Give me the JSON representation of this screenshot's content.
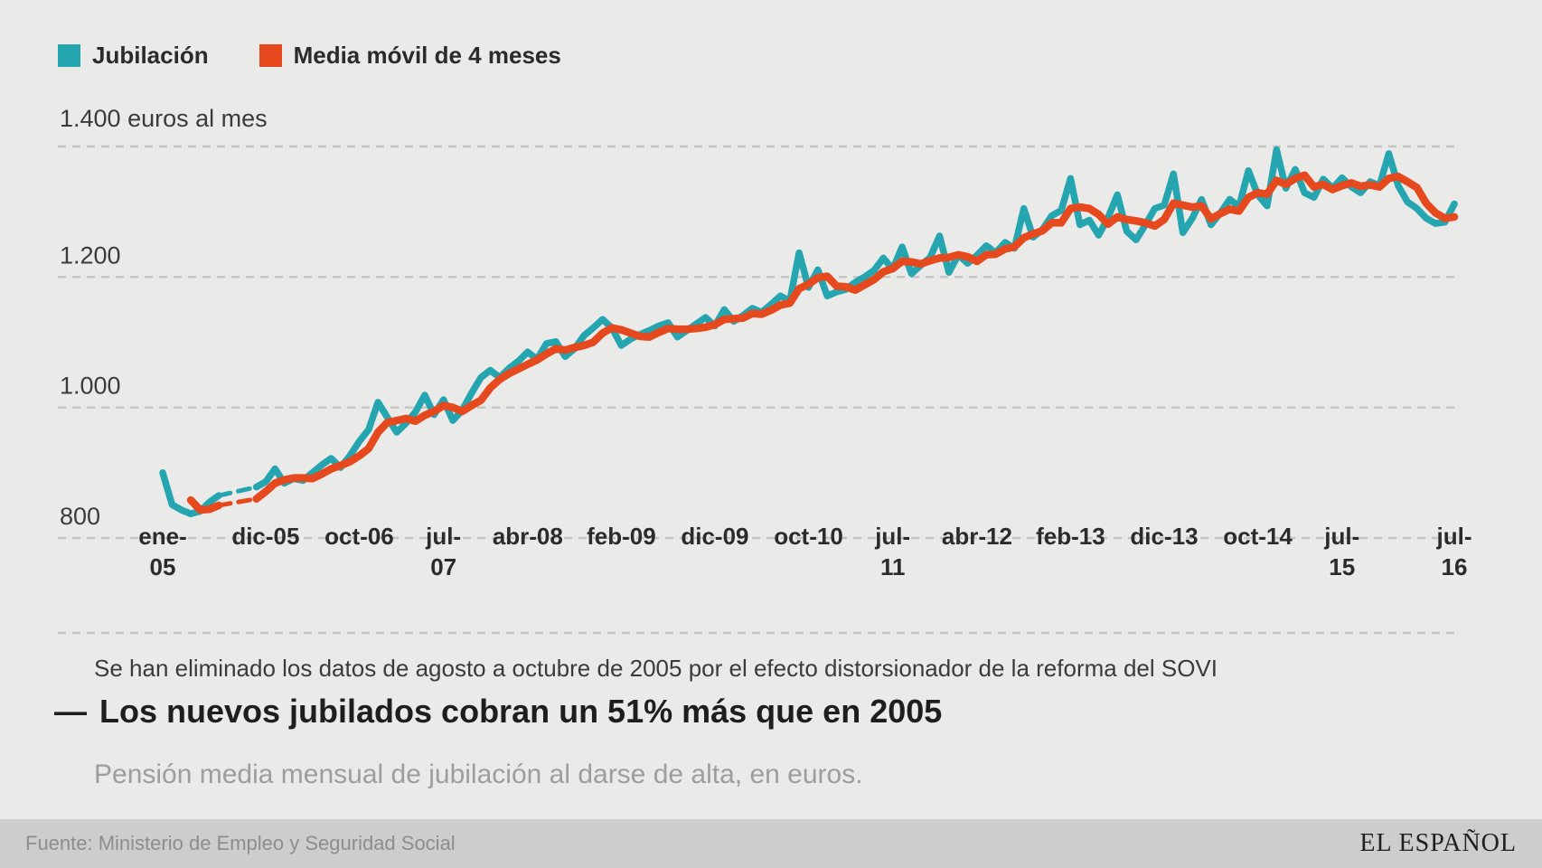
{
  "colors": {
    "background": "#eaeae8",
    "series_jubilacion": "#25a5b0",
    "series_media_movil": "#e5491d",
    "grid": "#c4c4c2",
    "axis_text": "#3b3b39",
    "month_text": "#2b2b29",
    "title_text": "#1e1e1c",
    "subtitle_text": "#9d9d9b",
    "footer_bg": "#cdcdcb",
    "footer_text": "#8d8d8b",
    "brand_text": "#1f1f1d"
  },
  "legend": {
    "items": [
      {
        "label": "Jubilación",
        "color": "#25a5b0"
      },
      {
        "label": "Media móvil de 4 meses",
        "color": "#e5491d"
      }
    ]
  },
  "note": "Se han eliminado los datos de agosto a octubre de 2005 por el efecto distorsionador de la reforma del SOVI",
  "headline": {
    "dash": "—",
    "title": "Los nuevos jubilados cobran un 51% más que en 2005"
  },
  "subtitle": "Pensión media mensual de jubilación al darse de alta, en euros.",
  "footer": {
    "source": "Fuente: Ministerio de Empleo y Seguridad Social",
    "brand": "EL ESPAÑOL"
  },
  "chart_data": {
    "type": "line",
    "title": "Los nuevos jubilados cobran un 51% más que en 2005",
    "subtitle": "Pensión media mensual de jubilación al darse de alta, en euros.",
    "unit": "euros al mes",
    "x_start": "ene-05",
    "x_end": "jul-16",
    "x_months_total": 139,
    "gap_months": [
      "ago-05",
      "sep-05",
      "oct-05"
    ],
    "grid": "dashed-horizontal",
    "legend_position": "top-left",
    "ylim": [
      655,
      1480
    ],
    "y_ticks": [
      {
        "value": 1400,
        "label": "1.400 euros al mes"
      },
      {
        "value": 1200,
        "label": "1.200"
      },
      {
        "value": 1000,
        "label": "1.000"
      },
      {
        "value": 800,
        "label": "800"
      }
    ],
    "x_ticks": [
      {
        "month_index": 0,
        "label": [
          "ene-",
          "05"
        ]
      },
      {
        "month_index": 11,
        "label": [
          "dic-05"
        ]
      },
      {
        "month_index": 21,
        "label": [
          "oct-06"
        ]
      },
      {
        "month_index": 30,
        "label": [
          "jul-",
          "07"
        ]
      },
      {
        "month_index": 39,
        "label": [
          "abr-08"
        ]
      },
      {
        "month_index": 49,
        "label": [
          "feb-09"
        ]
      },
      {
        "month_index": 59,
        "label": [
          "dic-09"
        ]
      },
      {
        "month_index": 69,
        "label": [
          "oct-10"
        ]
      },
      {
        "month_index": 78,
        "label": [
          "jul-",
          "11"
        ]
      },
      {
        "month_index": 87,
        "label": [
          "abr-12"
        ]
      },
      {
        "month_index": 97,
        "label": [
          "feb-13"
        ]
      },
      {
        "month_index": 107,
        "label": [
          "dic-13"
        ]
      },
      {
        "month_index": 117,
        "label": [
          "oct-14"
        ]
      },
      {
        "month_index": 126,
        "label": [
          "jul-",
          "15"
        ]
      },
      {
        "month_index": 138,
        "label": [
          "jul-",
          "16"
        ]
      }
    ],
    "series": [
      {
        "name": "Jubilación",
        "color": "#25a5b0",
        "width": 7.5,
        "values": [
          900,
          851,
          843,
          837,
          841,
          855,
          865,
          null,
          null,
          null,
          878,
          886,
          906,
          884,
          891,
          888,
          900,
          912,
          922,
          908,
          926,
          948,
          966,
          1008,
          985,
          962,
          976,
          993,
          1019,
          989,
          1012,
          980,
          996,
          1022,
          1046,
          1057,
          1046,
          1060,
          1071,
          1085,
          1074,
          1098,
          1101,
          1078,
          1090,
          1110,
          1122,
          1135,
          1122,
          1095,
          1105,
          1112,
          1118,
          1125,
          1130,
          1108,
          1118,
          1128,
          1138,
          1125,
          1150,
          1132,
          1141,
          1152,
          1146,
          1158,
          1171,
          1163,
          1237,
          1184,
          1211,
          1171,
          1177,
          1181,
          1192,
          1200,
          1210,
          1229,
          1212,
          1246,
          1205,
          1218,
          1230,
          1263,
          1207,
          1234,
          1221,
          1233,
          1248,
          1237,
          1253,
          1244,
          1305,
          1261,
          1273,
          1294,
          1302,
          1351,
          1280,
          1287,
          1264,
          1291,
          1326,
          1270,
          1257,
          1280,
          1305,
          1310,
          1358,
          1268,
          1290,
          1319,
          1280,
          1298,
          1319,
          1308,
          1363,
          1326,
          1309,
          1395,
          1336,
          1365,
          1329,
          1322,
          1350,
          1336,
          1352,
          1338,
          1329,
          1346,
          1340,
          1389,
          1340,
          1315,
          1305,
          1290,
          1282,
          1284,
          1312
        ]
      },
      {
        "name": "Media móvil de 4 meses",
        "color": "#e5491d",
        "width": 8.5,
        "values": [
          null,
          null,
          null,
          858,
          843,
          844,
          850,
          null,
          null,
          null,
          860,
          871,
          884,
          889,
          892,
          892,
          891,
          898,
          906,
          911,
          917,
          926,
          937,
          962,
          977,
          980,
          983,
          979,
          988,
          994,
          1003,
          1000,
          994,
          1003,
          1011,
          1030,
          1043,
          1052,
          1059,
          1066,
          1073,
          1082,
          1090,
          1088,
          1092,
          1095,
          1100,
          1114,
          1122,
          1119,
          1114,
          1109,
          1108,
          1115,
          1121,
          1120,
          1120,
          1121,
          1123,
          1127,
          1135,
          1136,
          1137,
          1144,
          1143,
          1149,
          1157,
          1160,
          1182,
          1189,
          1199,
          1201,
          1186,
          1185,
          1180,
          1188,
          1196,
          1208,
          1213,
          1224,
          1223,
          1220,
          1225,
          1229,
          1230,
          1234,
          1231,
          1224,
          1234,
          1235,
          1243,
          1246,
          1260,
          1266,
          1271,
          1283,
          1283,
          1305,
          1307,
          1305,
          1296,
          1281,
          1292,
          1288,
          1286,
          1283,
          1278,
          1288,
          1313,
          1310,
          1307,
          1309,
          1289,
          1297,
          1304,
          1301,
          1322,
          1329,
          1327,
          1348,
          1342,
          1351,
          1356,
          1338,
          1342,
          1334,
          1340,
          1344,
          1339,
          1341,
          1338,
          1351,
          1354,
          1346,
          1337,
          1313,
          1298,
          1290,
          1292
        ]
      }
    ]
  }
}
